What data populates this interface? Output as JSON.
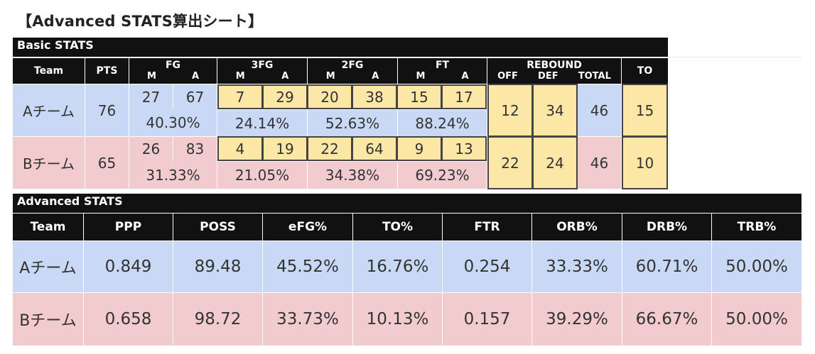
{
  "title": "【Advanced STATS算出シート】",
  "basic": {
    "section_label": "Basic STATS",
    "headers": {
      "team": "Team",
      "pts": "PTS",
      "fg": "FG",
      "fg3": "3FG",
      "fg2": "2FG",
      "ft": "FT",
      "rebound": "REBOUND",
      "to": "TO",
      "m": "M",
      "a": "A",
      "off": "OFF",
      "def": "DEF",
      "total": "TOTAL"
    },
    "teams": [
      {
        "name": "Aチーム",
        "pts": "76",
        "fg_m": "27",
        "fg_a": "67",
        "fg_pct": "40.30%",
        "fg3_m": "7",
        "fg3_a": "29",
        "fg3_pct": "24.14%",
        "fg2_m": "20",
        "fg2_a": "38",
        "fg2_pct": "52.63%",
        "ft_m": "15",
        "ft_a": "17",
        "ft_pct": "88.24%",
        "off": "12",
        "def": "34",
        "total": "46",
        "to": "15"
      },
      {
        "name": "Bチーム",
        "pts": "65",
        "fg_m": "26",
        "fg_a": "83",
        "fg_pct": "31.33%",
        "fg3_m": "4",
        "fg3_a": "19",
        "fg3_pct": "21.05%",
        "fg2_m": "22",
        "fg2_a": "64",
        "fg2_pct": "34.38%",
        "ft_m": "9",
        "ft_a": "13",
        "ft_pct": "69.23%",
        "off": "22",
        "def": "24",
        "total": "46",
        "to": "10"
      }
    ]
  },
  "advanced": {
    "section_label": "Advanced STATS",
    "headers": [
      "Team",
      "PPP",
      "POSS",
      "eFG%",
      "TO%",
      "FTR",
      "ORB%",
      "DRB%",
      "TRB%"
    ],
    "rows": [
      [
        "Aチーム",
        "0.849",
        "89.48",
        "45.52%",
        "16.76%",
        "0.254",
        "33.33%",
        "60.71%",
        "50.00%"
      ],
      [
        "Bチーム",
        "0.658",
        "98.72",
        "33.73%",
        "10.13%",
        "0.157",
        "39.29%",
        "66.67%",
        "50.00%"
      ]
    ]
  },
  "colors": {
    "header": "#111111",
    "team_a": "#c9d9f5",
    "team_b": "#f2cbcf",
    "input": "#fde7a6"
  }
}
